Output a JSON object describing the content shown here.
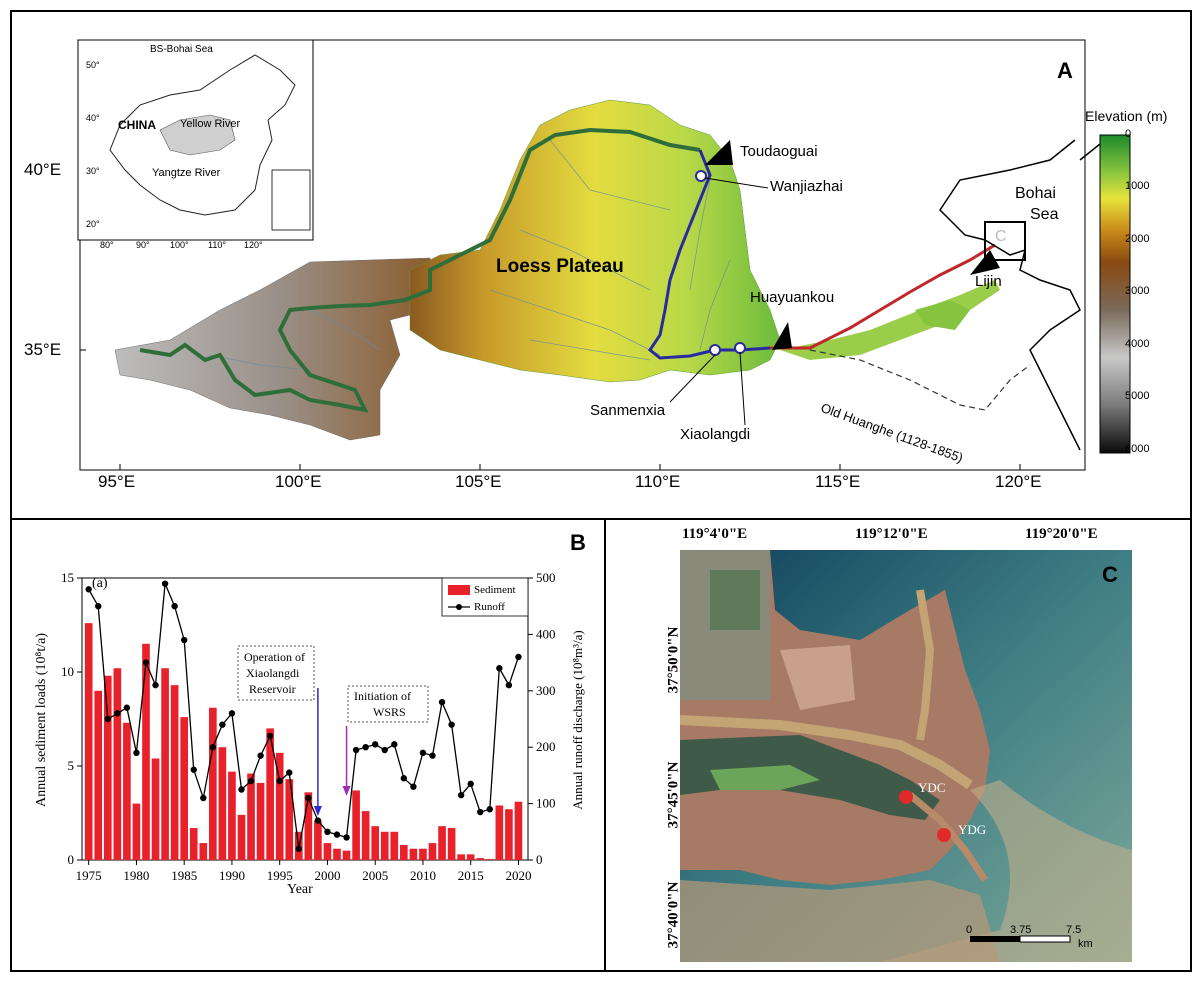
{
  "panel_a": {
    "letter": "A",
    "legend_title": "Elevation (m)",
    "elevation_ticks": [
      "0",
      "1000",
      "2000",
      "3000",
      "4000",
      "5000",
      "6000"
    ],
    "x_ticks": [
      "95°E",
      "100°E",
      "105°E",
      "110°E",
      "115°E",
      "120°E"
    ],
    "y_ticks": [
      "40°E",
      "35°E"
    ],
    "region_label": "Loess Plateau",
    "sea_label_1": "Bohai",
    "sea_label_2": "Sea",
    "stations": {
      "toudaoguai": "Toudaoguai",
      "wanjiazhai": "Wanjiazhai",
      "huayuankou": "Huayuankou",
      "sanmenxia": "Sanmenxia",
      "xiaolangdi": "Xiaolangdi",
      "lijin": "Lijin"
    },
    "old_course_label": "Old Huanghe (1128-1855)",
    "box_label": "C",
    "inset": {
      "title": "BS-Bohai Sea",
      "country": "CHINA",
      "river1": "Yellow River",
      "river2": "Yangtze River",
      "lat_ticks": [
        "50°",
        "40°",
        "30°",
        "20°"
      ],
      "lon_ticks": [
        "80°",
        "90°",
        "100°",
        "110°",
        "120°"
      ]
    }
  },
  "panel_b": {
    "letter": "B",
    "subfig_label": "(a)",
    "annot_xld": [
      "Operation of",
      "Xiaolangdi",
      "Reservoir"
    ],
    "annot_wsrs": [
      "Initiation of",
      "WSRS"
    ],
    "chart_data": {
      "type": "bar",
      "xlabel": "Year",
      "ylabel_left": "Annual sediment loads (10⁸t/a)",
      "ylabel_right": "Annual runoff discharge (10⁸m³/a)",
      "ylim_left": [
        0,
        15
      ],
      "ylim_right": [
        0,
        500
      ],
      "x_ticks": [
        1975,
        1980,
        1985,
        1990,
        1995,
        2000,
        2005,
        2010,
        2015,
        2020
      ],
      "y_left_ticks": [
        0,
        5,
        10,
        15
      ],
      "y_right_ticks": [
        0,
        100,
        200,
        300,
        400,
        500
      ],
      "legend": [
        "Sediment",
        "Runoff"
      ],
      "colors": {
        "sediment": "#e8212b",
        "runoff": "#000000"
      },
      "years": [
        1975,
        1976,
        1977,
        1978,
        1979,
        1980,
        1981,
        1982,
        1983,
        1984,
        1985,
        1986,
        1987,
        1988,
        1989,
        1990,
        1991,
        1992,
        1993,
        1994,
        1995,
        1996,
        1997,
        1998,
        1999,
        2000,
        2001,
        2002,
        2003,
        2004,
        2005,
        2006,
        2007,
        2008,
        2009,
        2010,
        2011,
        2012,
        2013,
        2014,
        2015,
        2016,
        2017,
        2018,
        2019,
        2020
      ],
      "sediment": [
        12.6,
        9.0,
        9.8,
        10.2,
        7.3,
        3.0,
        11.5,
        5.4,
        10.2,
        9.3,
        7.6,
        1.7,
        0.9,
        8.1,
        6.0,
        4.7,
        2.4,
        4.6,
        4.1,
        7.0,
        5.7,
        4.3,
        1.5,
        3.6,
        2.1,
        0.9,
        0.6,
        0.5,
        3.7,
        2.6,
        1.8,
        1.5,
        1.5,
        0.8,
        0.6,
        0.6,
        0.9,
        1.8,
        1.7,
        0.3,
        0.3,
        0.1,
        0.05,
        2.9,
        2.7,
        3.1
      ],
      "runoff": [
        480,
        450,
        250,
        260,
        270,
        190,
        350,
        310,
        490,
        450,
        390,
        160,
        110,
        200,
        240,
        260,
        125,
        140,
        185,
        220,
        140,
        155,
        20,
        110,
        70,
        50,
        45,
        40,
        195,
        200,
        205,
        195,
        205,
        145,
        130,
        190,
        185,
        280,
        240,
        115,
        135,
        85,
        90,
        340,
        310,
        360
      ]
    }
  },
  "panel_c": {
    "letter": "C",
    "lon_ticks": [
      "119°4'0\"E",
      "119°12'0\"E",
      "119°20'0\"E"
    ],
    "lat_ticks": [
      "37°50'0\"N",
      "37°45'0\"N",
      "37°40'0\"N"
    ],
    "sites": [
      "YDC",
      "YDG"
    ],
    "scale": [
      "0",
      "3.75",
      "7.5",
      "km"
    ]
  }
}
